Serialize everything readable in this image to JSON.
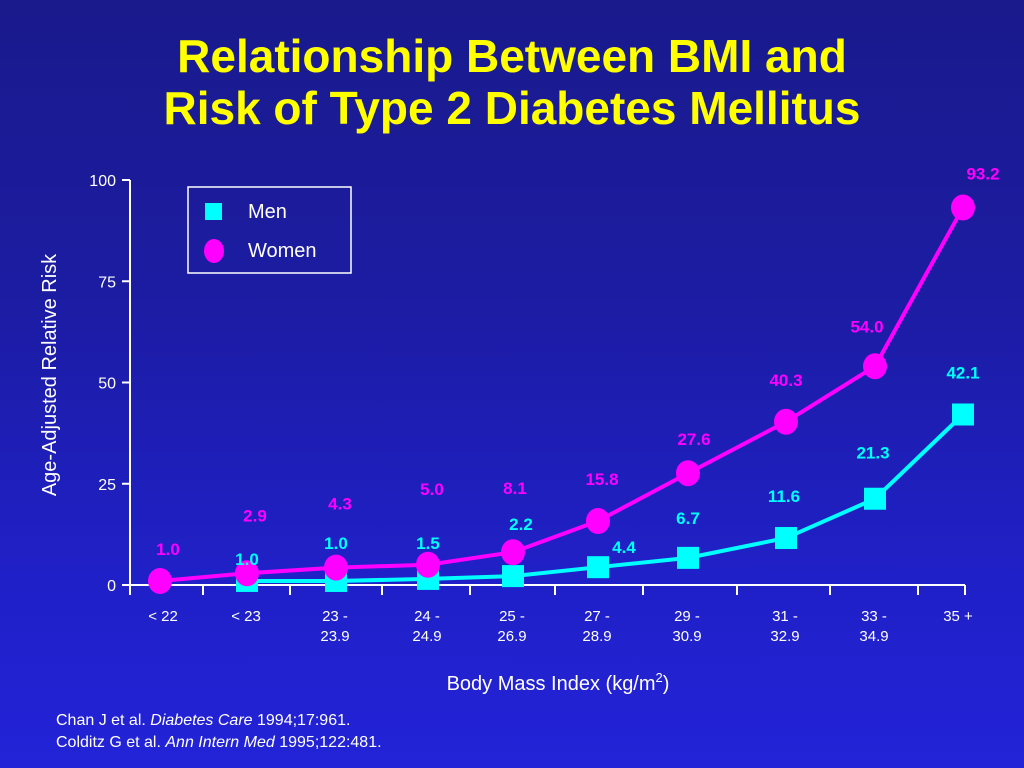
{
  "title": {
    "line1": "Relationship Between BMI and",
    "line2": "Risk of Type 2 Diabetes Mellitus"
  },
  "colors": {
    "title": "#ffff00",
    "men": "#00ffff",
    "women": "#ff00ff",
    "axis": "#ffffff",
    "background": "#1c1ca4"
  },
  "chart_data": {
    "type": "line",
    "categories": [
      [
        "< 22"
      ],
      [
        "< 23"
      ],
      [
        "23 -",
        "23.9"
      ],
      [
        "24 -",
        "24.9"
      ],
      [
        "25 -",
        "26.9"
      ],
      [
        "27 -",
        "28.9"
      ],
      [
        "29 -",
        "30.9"
      ],
      [
        "31 -",
        "32.9"
      ],
      [
        "33 -",
        "34.9"
      ],
      [
        "35 +"
      ]
    ],
    "series": [
      {
        "name": "Women",
        "marker": "circle",
        "x": [
          0,
          1,
          2,
          3,
          4,
          5,
          6,
          7,
          8,
          9
        ],
        "values": [
          1.0,
          2.9,
          4.3,
          5.0,
          8.1,
          15.8,
          27.6,
          40.3,
          54.0,
          93.2
        ],
        "labels": [
          "1.0",
          "2.9",
          "4.3",
          "5.0",
          "8.1",
          "15.8",
          "27.6",
          "40.3",
          "54.0",
          "93.2"
        ]
      },
      {
        "name": "Men",
        "marker": "square",
        "x": [
          1,
          2,
          3,
          4,
          5,
          6,
          7,
          8,
          9
        ],
        "values": [
          1.0,
          1.0,
          1.5,
          2.2,
          4.4,
          6.7,
          11.6,
          21.3,
          42.1
        ],
        "labels": [
          "1.0",
          "1.0",
          "1.5",
          "2.2",
          "4.4",
          "6.7",
          "11.6",
          "21.3",
          "42.1"
        ]
      }
    ],
    "ylabel": "Age-Adjusted Relative Risk",
    "xlabel": "Body Mass Index (kg/m",
    "xlabel_superscript": "2",
    "xlabel_suffix": ")",
    "ylim": [
      0,
      100
    ],
    "yticks": [
      0,
      25,
      50,
      75,
      100
    ],
    "grid": false,
    "legend": "top-left"
  },
  "references": [
    {
      "authors": "Chan J et al. ",
      "journal": "Diabetes Care",
      "details": " 1994;17:961."
    },
    {
      "authors": "Colditz G et al. ",
      "journal": "Ann Intern Med",
      "details": " 1995;122:481."
    }
  ]
}
